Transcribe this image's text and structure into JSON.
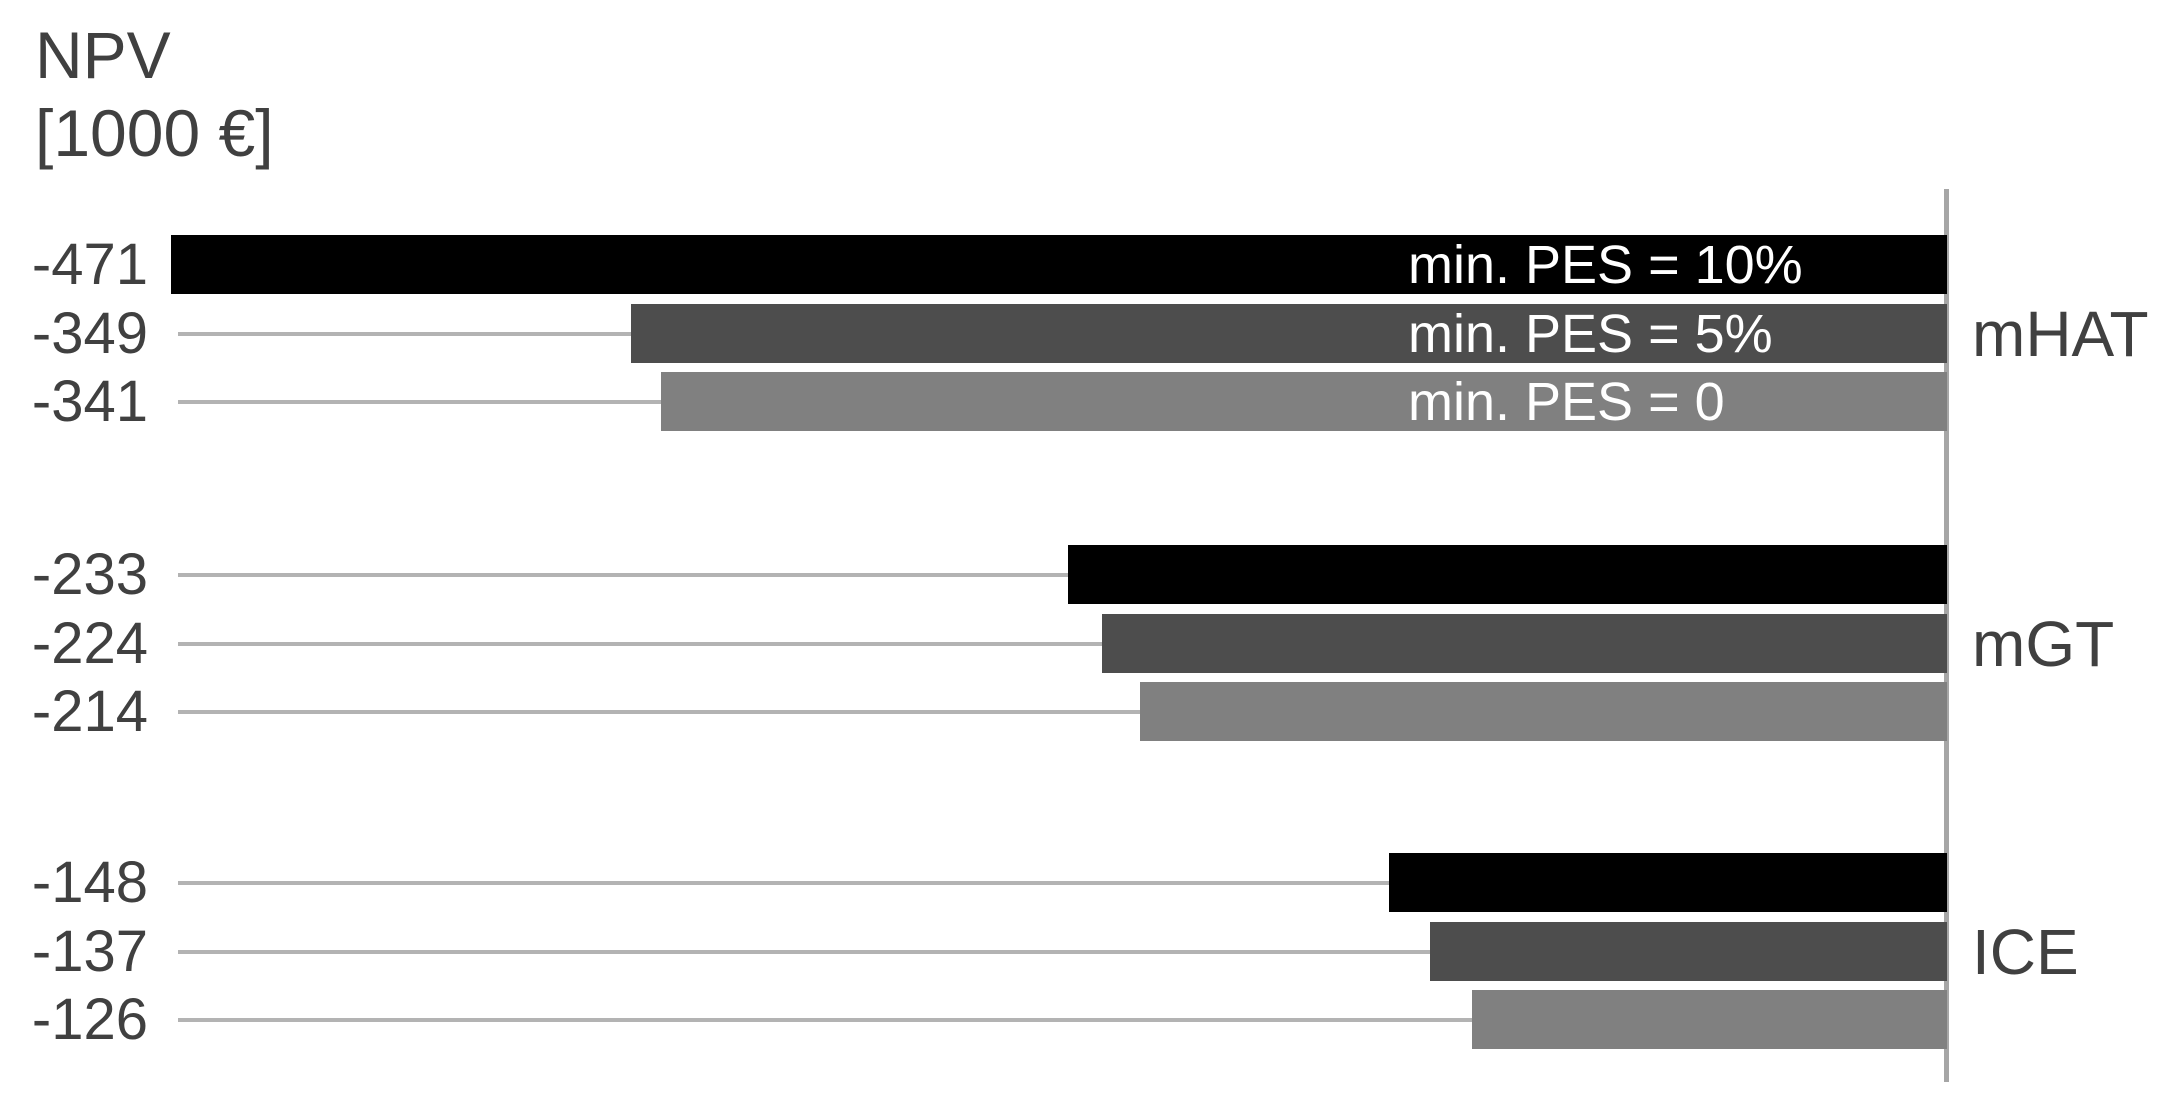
{
  "chart_data": {
    "type": "bar",
    "orientation": "horizontal",
    "title": "NPV [1000 €]",
    "title_lines": [
      "NPV",
      "[1000 €]"
    ],
    "unit": "1000 €",
    "categories": [
      "mHAT",
      "mGT",
      "ICE"
    ],
    "series": [
      {
        "name": "min. PES = 10%",
        "color": "#000000",
        "values": [
          -471,
          -233,
          -148
        ]
      },
      {
        "name": "min. PES = 5%",
        "color": "#4d4d4d",
        "values": [
          -349,
          -224,
          -137
        ]
      },
      {
        "name": "min. PES = 0",
        "color": "#808080",
        "values": [
          -341,
          -214,
          -126
        ]
      }
    ],
    "value_labels": [
      [
        "-471",
        "-349",
        "-341"
      ],
      [
        "-233",
        "-224",
        "-214"
      ],
      [
        "-148",
        "-137",
        "-126"
      ]
    ],
    "xlim": [
      -471,
      0
    ],
    "grid": false,
    "legend_position": "inside-first-group-bars",
    "axis": {
      "side": "right",
      "value_at_axis": 0,
      "color": "#a6a6a6"
    },
    "leader_line_color": "#b3b3b3",
    "text_color": "#404040",
    "bar_label_text_color": "#ffffff",
    "background_color": "#ffffff"
  }
}
